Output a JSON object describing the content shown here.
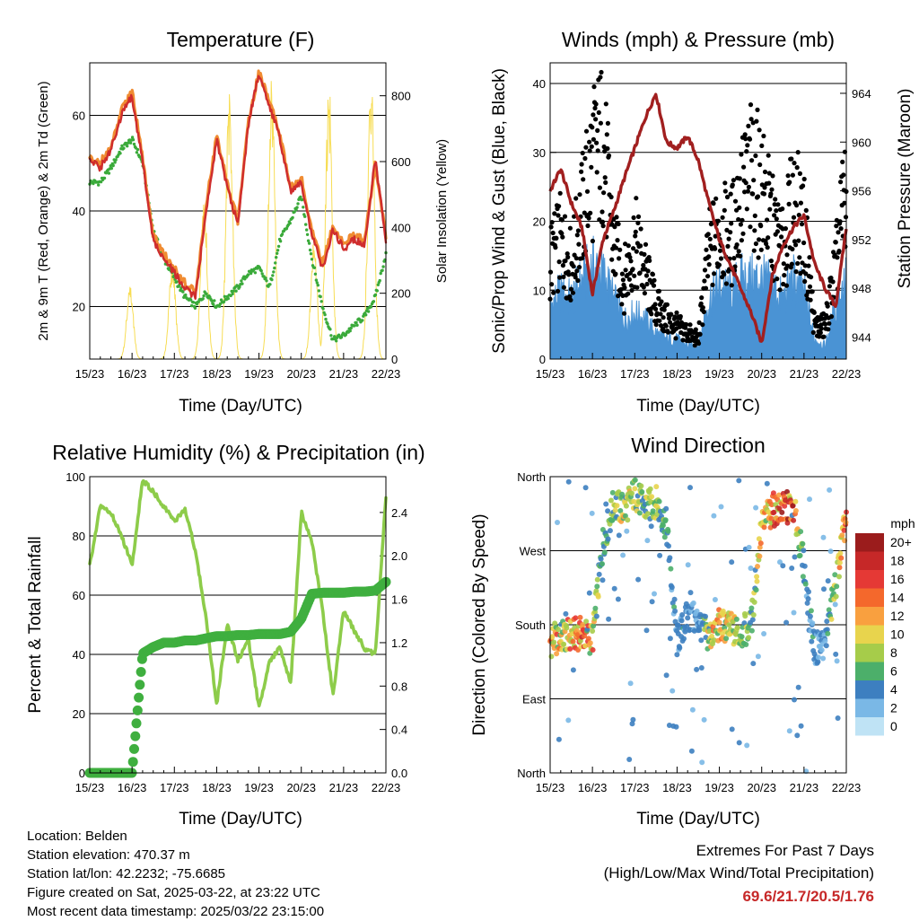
{
  "x_ticks": [
    "15/23",
    "16/23",
    "17/23",
    "18/23",
    "19/23",
    "20/23",
    "21/23",
    "22/23"
  ],
  "x_label": "Time (Day/UTC)",
  "colors": {
    "temp_2m": "#cf2d2d",
    "temp_9m": "#f08c32",
    "dewpoint": "#3aaa3a",
    "solar": "#f7dd55",
    "gust": "#000000",
    "wind": "#4a93d4",
    "pressure": "#a11f1f",
    "rh": "#8dcc4a",
    "precip": "#3faf3f"
  },
  "panels": {
    "temperature": {
      "title": "Temperature (F)",
      "ylabel": "2m & 9m T (Red, Orange) & 2m Td (Green)",
      "y2label": "Solar Insolation (Yellow)",
      "y_ticks": [
        "20",
        "40",
        "60"
      ],
      "y2_ticks": [
        "0",
        "200",
        "400",
        "600",
        "800"
      ]
    },
    "winds": {
      "title": "Winds (mph) & Pressure (mb)",
      "ylabel": "Sonic/Prop Wind & Gust (Blue, Black)",
      "y2label": "Station Pressure (Maroon)",
      "y_ticks": [
        "0",
        "10",
        "20",
        "30",
        "40"
      ],
      "y2_ticks": [
        "944",
        "948",
        "952",
        "956",
        "960",
        "964"
      ]
    },
    "humidity": {
      "title": "Relative Humidity (%) & Precipitation (in)",
      "ylabel": "Percent & Total Rainfall",
      "y_ticks": [
        "0",
        "20",
        "40",
        "60",
        "80",
        "100"
      ],
      "y2_ticks": [
        "0.0",
        "0.4",
        "0.8",
        "1.2",
        "1.6",
        "2.0",
        "2.4"
      ]
    },
    "direction": {
      "title": "Wind Direction",
      "ylabel": "Direction (Colored By Speed)",
      "y_ticks": [
        "North",
        "East",
        "South",
        "West",
        "North"
      ],
      "legend_title": "mph",
      "legend_labels": [
        "20+",
        "18",
        "16",
        "14",
        "12",
        "10",
        "8",
        "6",
        "4",
        "2",
        "0"
      ],
      "legend_colors": [
        "#9b1c1c",
        "#c62828",
        "#e53935",
        "#f4682c",
        "#f9a03f",
        "#e8d44d",
        "#a6cc4a",
        "#4caf6a",
        "#3d7fc0",
        "#7ab8e6",
        "#bfe3f5"
      ]
    }
  },
  "chart_data": [
    {
      "type": "line",
      "title": "Temperature (F)",
      "xlabel": "Time (Day/UTC)",
      "ylabel": "2m & 9m T (Red, Orange) & 2m Td (Green)",
      "y2label": "Solar Insolation (Yellow)",
      "x": [
        0,
        0.25,
        0.5,
        0.75,
        1,
        1.25,
        1.5,
        1.75,
        2,
        2.25,
        2.5,
        2.75,
        3,
        3.25,
        3.5,
        3.75,
        4,
        4.25,
        4.5,
        4.75,
        5,
        5.25,
        5.5,
        5.75,
        6,
        6.25,
        6.5,
        6.75,
        7
      ],
      "ylim": [
        9,
        71
      ],
      "y2lim": [
        0,
        900
      ],
      "series": [
        {
          "name": "2m T",
          "values": [
            51,
            49,
            53,
            60,
            64,
            50,
            34,
            30,
            27,
            24,
            22,
            40,
            55,
            45,
            37,
            58,
            69,
            62,
            55,
            44,
            46,
            35,
            28,
            36,
            32,
            34,
            33,
            51,
            34
          ]
        },
        {
          "name": "9m T",
          "values": [
            51,
            50,
            54,
            61,
            65,
            51,
            35,
            31,
            28,
            25,
            23,
            41,
            56,
            46,
            38,
            59,
            69,
            63,
            56,
            45,
            47,
            36,
            29,
            37,
            33,
            35,
            34,
            50,
            35
          ]
        },
        {
          "name": "2m Td",
          "values": [
            46,
            46,
            49,
            53,
            55,
            50,
            36,
            30,
            26,
            22,
            20,
            23,
            20,
            22,
            24,
            27,
            28,
            24,
            34,
            38,
            43,
            30,
            20,
            13,
            14,
            16,
            18,
            22,
            31
          ]
        },
        {
          "name": "Solar",
          "values": [
            0,
            120,
            0,
            300,
            0,
            0,
            0,
            520,
            0,
            830,
            0,
            0,
            0,
            830,
            0,
            0,
            0,
            860,
            0,
            0,
            0,
            0,
            0,
            860,
            0,
            0,
            0,
            870,
            0
          ]
        }
      ]
    },
    {
      "type": "line",
      "title": "Winds (mph) & Pressure (mb)",
      "xlabel": "Time (Day/UTC)",
      "ylabel": "Sonic/Prop Wind & Gust (Blue, Black)",
      "y2label": "Station Pressure (Maroon)",
      "x": [
        0,
        0.25,
        0.5,
        0.75,
        1,
        1.25,
        1.5,
        1.75,
        2,
        2.25,
        2.5,
        2.75,
        3,
        3.25,
        3.5,
        3.75,
        4,
        4.25,
        4.5,
        4.75,
        5,
        5.25,
        5.5,
        5.75,
        6,
        6.25,
        6.5,
        6.75,
        7
      ],
      "ylim": [
        0,
        43
      ],
      "y2lim": [
        942.2,
        966.5
      ],
      "series": [
        {
          "name": "Gust",
          "values": [
            15,
            18,
            14,
            22,
            30,
            33,
            17,
            12,
            18,
            13,
            8,
            6,
            5,
            4,
            3,
            16,
            20,
            18,
            24,
            28,
            26,
            20,
            16,
            24,
            20,
            5,
            5,
            14,
            27
          ]
        },
        {
          "name": "Wind",
          "values": [
            8,
            10,
            9,
            12,
            14,
            13,
            9,
            6,
            7,
            6,
            4,
            3,
            3,
            2,
            2,
            9,
            11,
            10,
            12,
            12,
            12,
            11,
            9,
            12,
            10,
            3,
            2,
            8,
            12
          ]
        },
        {
          "name": "Pressure",
          "values": [
            956,
            957.8,
            955,
            953,
            947.5,
            952,
            954.3,
            957,
            959.5,
            962,
            964,
            960,
            959.5,
            960.5,
            958.5,
            955,
            952,
            950,
            948,
            946,
            943.5,
            949,
            951.5,
            953,
            954,
            950,
            948,
            946.5,
            953
          ]
        }
      ]
    },
    {
      "type": "line",
      "title": "Relative Humidity (%) & Precipitation (in)",
      "xlabel": "Time (Day/UTC)",
      "ylabel": "Percent & Total Rainfall",
      "x": [
        0,
        0.25,
        0.5,
        0.75,
        1,
        1.25,
        1.5,
        1.75,
        2,
        2.25,
        2.5,
        2.75,
        3,
        3.25,
        3.5,
        3.75,
        4,
        4.25,
        4.5,
        4.75,
        5,
        5.25,
        5.5,
        5.75,
        6,
        6.25,
        6.5,
        6.75,
        7
      ],
      "ylim": [
        0,
        100
      ],
      "y2lim": [
        0,
        2.73
      ],
      "series": [
        {
          "name": "RH",
          "values": [
            70,
            90,
            88,
            80,
            70,
            99,
            95,
            90,
            85,
            89,
            75,
            52,
            23,
            50,
            38,
            45,
            22,
            38,
            42,
            30,
            88,
            78,
            55,
            26,
            55,
            48,
            42,
            40,
            93
          ]
        },
        {
          "name": "Precip",
          "values": [
            0,
            0,
            0,
            0,
            0,
            1.1,
            1.16,
            1.2,
            1.2,
            1.22,
            1.22,
            1.24,
            1.26,
            1.26,
            1.27,
            1.27,
            1.28,
            1.28,
            1.28,
            1.3,
            1.42,
            1.65,
            1.66,
            1.66,
            1.66,
            1.67,
            1.67,
            1.68,
            1.76
          ]
        }
      ]
    },
    {
      "type": "scatter",
      "title": "Wind Direction",
      "xlabel": "Time (Day/UTC)",
      "ylabel": "Direction (Colored By Speed)",
      "x": [
        0,
        0.25,
        0.5,
        0.75,
        1,
        1.25,
        1.5,
        1.75,
        2,
        2.25,
        2.5,
        2.75,
        3,
        3.25,
        3.5,
        3.75,
        4,
        4.25,
        4.5,
        4.75,
        5,
        5.25,
        5.5,
        5.75,
        6,
        6.25,
        6.5,
        6.75,
        7
      ],
      "ylim": [
        0,
        360
      ],
      "series": [
        {
          "name": "Direction",
          "values": [
            160,
            165,
            168,
            170,
            162,
            280,
            325,
            320,
            340,
            322,
            330,
            300,
            160,
            190,
            185,
            165,
            180,
            175,
            170,
            178,
            300,
            320,
            320,
            325,
            250,
            150,
            160,
            230,
            312
          ]
        },
        {
          "name": "Speed",
          "values": [
            13,
            12,
            13,
            14,
            12,
            6,
            8,
            9,
            9,
            8,
            8,
            5,
            4,
            4,
            3,
            10,
            12,
            10,
            8,
            7,
            11,
            14,
            15,
            16,
            4,
            4,
            3,
            10,
            14
          ]
        }
      ]
    }
  ],
  "info": [
    "Location: Belden",
    "Station elevation: 470.37 m",
    "Station lat/lon: 42.2232; -75.6685",
    "Figure created on Sat, 2025-03-22, at 23:22 UTC",
    "Most recent data timestamp: 2025/03/22 23:15:00"
  ],
  "extremes": {
    "line1": "Extremes For Past 7 Days",
    "line2": "(High/Low/Max Wind/Total Precipitation)",
    "values": "69.6/21.7/20.5/1.76"
  }
}
